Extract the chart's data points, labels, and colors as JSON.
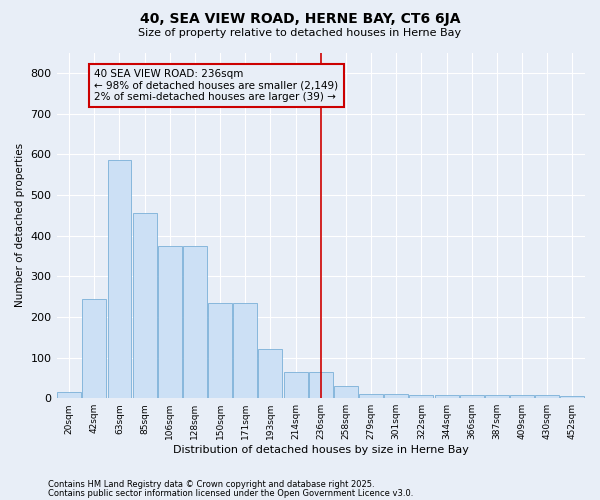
{
  "title1": "40, SEA VIEW ROAD, HERNE BAY, CT6 6JA",
  "title2": "Size of property relative to detached houses in Herne Bay",
  "xlabel": "Distribution of detached houses by size in Herne Bay",
  "ylabel": "Number of detached properties",
  "bin_labels": [
    "20sqm",
    "42sqm",
    "63sqm",
    "85sqm",
    "106sqm",
    "128sqm",
    "150sqm",
    "171sqm",
    "193sqm",
    "214sqm",
    "236sqm",
    "258sqm",
    "279sqm",
    "301sqm",
    "322sqm",
    "344sqm",
    "366sqm",
    "387sqm",
    "409sqm",
    "430sqm",
    "452sqm"
  ],
  "bar_heights": [
    15,
    245,
    585,
    455,
    375,
    375,
    235,
    235,
    120,
    65,
    65,
    30,
    10,
    10,
    8,
    8,
    8,
    8,
    8,
    8,
    5
  ],
  "bar_color": "#cce0f5",
  "bar_edge_color": "#7ab0d8",
  "vline_x_index": 10,
  "vline_color": "#cc0000",
  "annotation_text": "40 SEA VIEW ROAD: 236sqm\n← 98% of detached houses are smaller (2,149)\n2% of semi-detached houses are larger (39) →",
  "background_color": "#e8eef7",
  "grid_color": "#ffffff",
  "ylim": [
    0,
    850
  ],
  "yticks": [
    0,
    100,
    200,
    300,
    400,
    500,
    600,
    700,
    800
  ],
  "footer1": "Contains HM Land Registry data © Crown copyright and database right 2025.",
  "footer2": "Contains public sector information licensed under the Open Government Licence v3.0."
}
